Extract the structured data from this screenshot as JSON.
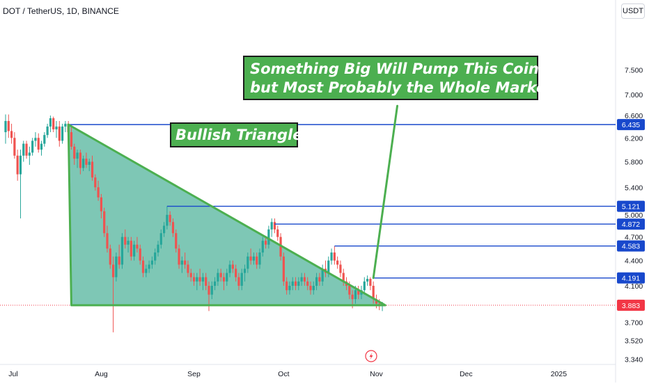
{
  "header": {
    "symbol_title": "DOT / TetherUS, 1D, BINANCE",
    "currency_button": "USDT"
  },
  "annotations": {
    "main_text_line1": "Something Big Will Pump This Coin",
    "main_text_line2": "but Most Probably the Whole Market",
    "triangle_label": "Bullish Triangle"
  },
  "colors": {
    "up": "#26a69a",
    "down": "#ef5350",
    "level_line": "#1848cc",
    "triangle_fill": "#2fa588",
    "triangle_edge": "#4caf50",
    "current_price": "#f23645"
  },
  "chart_data": {
    "type": "candlestick",
    "title": "DOT / TetherUS, 1D, BINANCE",
    "x_ticks": [
      "Jul",
      "Aug",
      "Sep",
      "Oct",
      "Nov",
      "Dec",
      "2025"
    ],
    "y_ticks": [
      7.5,
      7.0,
      6.6,
      6.2,
      5.8,
      5.4,
      5.0,
      4.7,
      4.4,
      4.1,
      3.7,
      3.52,
      3.34
    ],
    "y_tick_labels": [
      "7.500",
      "7.000",
      "6.600",
      "6.200",
      "5.800",
      "5.400",
      "5.000",
      "4.700",
      "4.400",
      "4.100",
      "3.700",
      "3.520",
      "3.340"
    ],
    "y_scale": "log",
    "ylim": [
      3.31,
      8.6
    ],
    "x_range": [
      "2024-06-30",
      "2025-01-20"
    ],
    "current_price": {
      "value": 3.883,
      "label": "3.883"
    },
    "levels": [
      {
        "value": 6.435,
        "label": "6.435",
        "start": "2024-07-21"
      },
      {
        "value": 5.121,
        "label": "5.121",
        "start": "2024-08-23"
      },
      {
        "value": 4.872,
        "label": "4.872",
        "start": "2024-09-28"
      },
      {
        "value": 4.583,
        "label": "4.583",
        "start": "2024-10-18"
      },
      {
        "value": 4.191,
        "label": "4.191",
        "start": "2024-10-31"
      }
    ],
    "triangle": {
      "points": [
        {
          "date": "2024-07-21",
          "price": 6.435
        },
        {
          "date": "2024-07-22",
          "price": 3.883
        },
        {
          "date": "2024-11-04",
          "price": 3.883
        }
      ]
    },
    "projection": {
      "from": {
        "date": "2024-10-31",
        "price": 4.191
      },
      "to": {
        "date": "2024-11-08",
        "price": 6.78
      }
    },
    "candles": [
      {
        "date": "2024-06-30",
        "open": 6.3,
        "high": 6.62,
        "low": 6.1,
        "close": 6.5
      },
      {
        "date": "2024-07-01",
        "open": 6.5,
        "high": 6.62,
        "low": 6.2,
        "close": 6.32
      },
      {
        "date": "2024-07-02",
        "open": 6.32,
        "high": 6.45,
        "low": 6.1,
        "close": 6.2
      },
      {
        "date": "2024-07-03",
        "open": 6.2,
        "high": 6.3,
        "low": 5.85,
        "close": 5.9
      },
      {
        "date": "2024-07-04",
        "open": 5.9,
        "high": 6.0,
        "low": 5.5,
        "close": 5.6
      },
      {
        "date": "2024-07-05",
        "open": 5.6,
        "high": 6.0,
        "low": 4.95,
        "close": 5.9
      },
      {
        "date": "2024-07-06",
        "open": 5.9,
        "high": 6.15,
        "low": 5.8,
        "close": 6.1
      },
      {
        "date": "2024-07-07",
        "open": 6.1,
        "high": 6.15,
        "low": 5.85,
        "close": 5.9
      },
      {
        "date": "2024-07-08",
        "open": 5.9,
        "high": 6.05,
        "low": 5.75,
        "close": 5.95
      },
      {
        "date": "2024-07-09",
        "open": 5.95,
        "high": 6.2,
        "low": 5.9,
        "close": 6.15
      },
      {
        "date": "2024-07-10",
        "open": 6.15,
        "high": 6.3,
        "low": 6.05,
        "close": 6.2
      },
      {
        "date": "2024-07-11",
        "open": 6.2,
        "high": 6.28,
        "low": 5.95,
        "close": 6.0
      },
      {
        "date": "2024-07-12",
        "open": 6.0,
        "high": 6.15,
        "low": 5.9,
        "close": 6.1
      },
      {
        "date": "2024-07-13",
        "open": 6.1,
        "high": 6.3,
        "low": 6.05,
        "close": 6.25
      },
      {
        "date": "2024-07-14",
        "open": 6.25,
        "high": 6.45,
        "low": 6.2,
        "close": 6.4
      },
      {
        "date": "2024-07-15",
        "open": 6.4,
        "high": 6.6,
        "low": 6.3,
        "close": 6.55
      },
      {
        "date": "2024-07-16",
        "open": 6.55,
        "high": 6.58,
        "low": 6.3,
        "close": 6.35
      },
      {
        "date": "2024-07-17",
        "open": 6.35,
        "high": 6.5,
        "low": 6.2,
        "close": 6.4
      },
      {
        "date": "2024-07-18",
        "open": 6.4,
        "high": 6.5,
        "low": 6.05,
        "close": 6.15
      },
      {
        "date": "2024-07-19",
        "open": 6.15,
        "high": 6.45,
        "low": 6.1,
        "close": 6.4
      },
      {
        "date": "2024-07-20",
        "open": 6.4,
        "high": 6.5,
        "low": 6.3,
        "close": 6.45
      },
      {
        "date": "2024-07-21",
        "open": 6.45,
        "high": 6.5,
        "low": 6.25,
        "close": 6.3
      },
      {
        "date": "2024-07-22",
        "open": 6.3,
        "high": 6.4,
        "low": 6.0,
        "close": 6.05
      },
      {
        "date": "2024-07-23",
        "open": 6.05,
        "high": 6.1,
        "low": 5.75,
        "close": 5.85
      },
      {
        "date": "2024-07-24",
        "open": 5.85,
        "high": 6.0,
        "low": 5.7,
        "close": 5.95
      },
      {
        "date": "2024-07-25",
        "open": 5.95,
        "high": 6.0,
        "low": 5.6,
        "close": 5.7
      },
      {
        "date": "2024-07-26",
        "open": 5.7,
        "high": 5.9,
        "low": 5.65,
        "close": 5.85
      },
      {
        "date": "2024-07-27",
        "open": 5.85,
        "high": 5.95,
        "low": 5.7,
        "close": 5.75
      },
      {
        "date": "2024-07-28",
        "open": 5.75,
        "high": 5.85,
        "low": 5.65,
        "close": 5.8
      },
      {
        "date": "2024-07-29",
        "open": 5.8,
        "high": 5.9,
        "low": 5.5,
        "close": 5.55
      },
      {
        "date": "2024-07-30",
        "open": 5.55,
        "high": 5.6,
        "low": 5.35,
        "close": 5.4
      },
      {
        "date": "2024-07-31",
        "open": 5.4,
        "high": 5.5,
        "low": 5.2,
        "close": 5.25
      },
      {
        "date": "2024-08-01",
        "open": 5.25,
        "high": 5.3,
        "low": 4.95,
        "close": 5.05
      },
      {
        "date": "2024-08-02",
        "open": 5.05,
        "high": 5.1,
        "low": 4.7,
        "close": 4.75
      },
      {
        "date": "2024-08-03",
        "open": 4.75,
        "high": 4.85,
        "low": 4.5,
        "close": 4.55
      },
      {
        "date": "2024-08-04",
        "open": 4.55,
        "high": 4.6,
        "low": 4.3,
        "close": 4.35
      },
      {
        "date": "2024-08-05",
        "open": 4.35,
        "high": 4.45,
        "low": 3.6,
        "close": 4.2
      },
      {
        "date": "2024-08-06",
        "open": 4.2,
        "high": 4.5,
        "low": 4.15,
        "close": 4.45
      },
      {
        "date": "2024-08-07",
        "open": 4.45,
        "high": 4.6,
        "low": 4.3,
        "close": 4.35
      },
      {
        "date": "2024-08-08",
        "open": 4.35,
        "high": 4.75,
        "low": 4.3,
        "close": 4.7
      },
      {
        "date": "2024-08-09",
        "open": 4.7,
        "high": 4.8,
        "low": 4.55,
        "close": 4.6
      },
      {
        "date": "2024-08-10",
        "open": 4.6,
        "high": 4.7,
        "low": 4.5,
        "close": 4.65
      },
      {
        "date": "2024-08-11",
        "open": 4.65,
        "high": 4.7,
        "low": 4.4,
        "close": 4.45
      },
      {
        "date": "2024-08-12",
        "open": 4.45,
        "high": 4.65,
        "low": 4.4,
        "close": 4.6
      },
      {
        "date": "2024-08-13",
        "open": 4.6,
        "high": 4.7,
        "low": 4.5,
        "close": 4.55
      },
      {
        "date": "2024-08-14",
        "open": 4.55,
        "high": 4.6,
        "low": 4.35,
        "close": 4.4
      },
      {
        "date": "2024-08-15",
        "open": 4.4,
        "high": 4.45,
        "low": 4.2,
        "close": 4.25
      },
      {
        "date": "2024-08-16",
        "open": 4.25,
        "high": 4.35,
        "low": 4.2,
        "close": 4.3
      },
      {
        "date": "2024-08-17",
        "open": 4.3,
        "high": 4.4,
        "low": 4.25,
        "close": 4.35
      },
      {
        "date": "2024-08-18",
        "open": 4.35,
        "high": 4.45,
        "low": 4.3,
        "close": 4.4
      },
      {
        "date": "2024-08-19",
        "open": 4.4,
        "high": 4.55,
        "low": 4.35,
        "close": 4.5
      },
      {
        "date": "2024-08-20",
        "open": 4.5,
        "high": 4.65,
        "low": 4.45,
        "close": 4.6
      },
      {
        "date": "2024-08-21",
        "open": 4.6,
        "high": 4.8,
        "low": 4.55,
        "close": 4.75
      },
      {
        "date": "2024-08-22",
        "open": 4.75,
        "high": 4.9,
        "low": 4.7,
        "close": 4.85
      },
      {
        "date": "2024-08-23",
        "open": 4.85,
        "high": 5.12,
        "low": 4.8,
        "close": 5.0
      },
      {
        "date": "2024-08-24",
        "open": 5.0,
        "high": 5.05,
        "low": 4.85,
        "close": 4.9
      },
      {
        "date": "2024-08-25",
        "open": 4.9,
        "high": 4.95,
        "low": 4.7,
        "close": 4.75
      },
      {
        "date": "2024-08-26",
        "open": 4.75,
        "high": 4.8,
        "low": 4.5,
        "close": 4.55
      },
      {
        "date": "2024-08-27",
        "open": 4.55,
        "high": 4.6,
        "low": 4.3,
        "close": 4.35
      },
      {
        "date": "2024-08-28",
        "open": 4.35,
        "high": 4.45,
        "low": 4.25,
        "close": 4.4
      },
      {
        "date": "2024-08-29",
        "open": 4.4,
        "high": 4.5,
        "low": 4.3,
        "close": 4.35
      },
      {
        "date": "2024-08-30",
        "open": 4.35,
        "high": 4.4,
        "low": 4.2,
        "close": 4.25
      },
      {
        "date": "2024-08-31",
        "open": 4.25,
        "high": 4.3,
        "low": 4.15,
        "close": 4.2
      },
      {
        "date": "2024-09-01",
        "open": 4.2,
        "high": 4.25,
        "low": 4.1,
        "close": 4.15
      },
      {
        "date": "2024-09-02",
        "open": 4.15,
        "high": 4.25,
        "low": 4.05,
        "close": 4.2
      },
      {
        "date": "2024-09-03",
        "open": 4.2,
        "high": 4.3,
        "low": 4.1,
        "close": 4.15
      },
      {
        "date": "2024-09-04",
        "open": 4.15,
        "high": 4.25,
        "low": 4.05,
        "close": 4.2
      },
      {
        "date": "2024-09-05",
        "open": 4.2,
        "high": 4.25,
        "low": 4.05,
        "close": 4.1
      },
      {
        "date": "2024-09-06",
        "open": 4.1,
        "high": 4.15,
        "low": 3.82,
        "close": 4.0
      },
      {
        "date": "2024-09-07",
        "open": 4.0,
        "high": 4.15,
        "low": 3.95,
        "close": 4.1
      },
      {
        "date": "2024-09-08",
        "open": 4.1,
        "high": 4.2,
        "low": 4.05,
        "close": 4.15
      },
      {
        "date": "2024-09-09",
        "open": 4.15,
        "high": 4.3,
        "low": 4.1,
        "close": 4.25
      },
      {
        "date": "2024-09-10",
        "open": 4.25,
        "high": 4.3,
        "low": 4.15,
        "close": 4.2
      },
      {
        "date": "2024-09-11",
        "open": 4.2,
        "high": 4.25,
        "low": 4.05,
        "close": 4.15
      },
      {
        "date": "2024-09-12",
        "open": 4.15,
        "high": 4.3,
        "low": 4.1,
        "close": 4.25
      },
      {
        "date": "2024-09-13",
        "open": 4.25,
        "high": 4.4,
        "low": 4.2,
        "close": 4.35
      },
      {
        "date": "2024-09-14",
        "open": 4.35,
        "high": 4.4,
        "low": 4.25,
        "close": 4.3
      },
      {
        "date": "2024-09-15",
        "open": 4.3,
        "high": 4.35,
        "low": 4.15,
        "close": 4.2
      },
      {
        "date": "2024-09-16",
        "open": 4.2,
        "high": 4.25,
        "low": 4.05,
        "close": 4.1
      },
      {
        "date": "2024-09-17",
        "open": 4.1,
        "high": 4.3,
        "low": 4.05,
        "close": 4.25
      },
      {
        "date": "2024-09-18",
        "open": 4.25,
        "high": 4.35,
        "low": 4.15,
        "close": 4.3
      },
      {
        "date": "2024-09-19",
        "open": 4.3,
        "high": 4.5,
        "low": 4.25,
        "close": 4.45
      },
      {
        "date": "2024-09-20",
        "open": 4.45,
        "high": 4.55,
        "low": 4.35,
        "close": 4.4
      },
      {
        "date": "2024-09-21",
        "open": 4.4,
        "high": 4.5,
        "low": 4.35,
        "close": 4.45
      },
      {
        "date": "2024-09-22",
        "open": 4.45,
        "high": 4.5,
        "low": 4.3,
        "close": 4.35
      },
      {
        "date": "2024-09-23",
        "open": 4.35,
        "high": 4.55,
        "low": 4.3,
        "close": 4.5
      },
      {
        "date": "2024-09-24",
        "open": 4.5,
        "high": 4.7,
        "low": 4.45,
        "close": 4.65
      },
      {
        "date": "2024-09-25",
        "open": 4.65,
        "high": 4.7,
        "low": 4.55,
        "close": 4.6
      },
      {
        "date": "2024-09-26",
        "open": 4.6,
        "high": 4.85,
        "low": 4.55,
        "close": 4.8
      },
      {
        "date": "2024-09-27",
        "open": 4.8,
        "high": 4.95,
        "low": 4.7,
        "close": 4.9
      },
      {
        "date": "2024-09-28",
        "open": 4.9,
        "high": 4.95,
        "low": 4.75,
        "close": 4.8
      },
      {
        "date": "2024-09-29",
        "open": 4.8,
        "high": 4.85,
        "low": 4.65,
        "close": 4.7
      },
      {
        "date": "2024-09-30",
        "open": 4.7,
        "high": 4.75,
        "low": 4.4,
        "close": 4.45
      },
      {
        "date": "2024-10-01",
        "open": 4.45,
        "high": 4.5,
        "low": 4.1,
        "close": 4.15
      },
      {
        "date": "2024-10-02",
        "open": 4.15,
        "high": 4.2,
        "low": 4.0,
        "close": 4.05
      },
      {
        "date": "2024-10-03",
        "open": 4.05,
        "high": 4.15,
        "low": 4.0,
        "close": 4.1
      },
      {
        "date": "2024-10-04",
        "open": 4.1,
        "high": 4.2,
        "low": 4.05,
        "close": 4.15
      },
      {
        "date": "2024-10-05",
        "open": 4.15,
        "high": 4.2,
        "low": 4.05,
        "close": 4.1
      },
      {
        "date": "2024-10-06",
        "open": 4.1,
        "high": 4.2,
        "low": 4.05,
        "close": 4.15
      },
      {
        "date": "2024-10-07",
        "open": 4.15,
        "high": 4.25,
        "low": 4.1,
        "close": 4.2
      },
      {
        "date": "2024-10-08",
        "open": 4.2,
        "high": 4.25,
        "low": 4.1,
        "close": 4.15
      },
      {
        "date": "2024-10-09",
        "open": 4.15,
        "high": 4.2,
        "low": 4.05,
        "close": 4.1
      },
      {
        "date": "2024-10-10",
        "open": 4.1,
        "high": 4.15,
        "low": 4.0,
        "close": 4.05
      },
      {
        "date": "2024-10-11",
        "open": 4.05,
        "high": 4.15,
        "low": 4.0,
        "close": 4.1
      },
      {
        "date": "2024-10-12",
        "open": 4.1,
        "high": 4.25,
        "low": 4.05,
        "close": 4.2
      },
      {
        "date": "2024-10-13",
        "open": 4.2,
        "high": 4.25,
        "low": 4.1,
        "close": 4.15
      },
      {
        "date": "2024-10-14",
        "open": 4.15,
        "high": 4.35,
        "low": 4.1,
        "close": 4.3
      },
      {
        "date": "2024-10-15",
        "open": 4.3,
        "high": 4.4,
        "low": 4.2,
        "close": 4.25
      },
      {
        "date": "2024-10-16",
        "open": 4.25,
        "high": 4.45,
        "low": 4.2,
        "close": 4.4
      },
      {
        "date": "2024-10-17",
        "open": 4.4,
        "high": 4.55,
        "low": 4.35,
        "close": 4.5
      },
      {
        "date": "2024-10-18",
        "open": 4.5,
        "high": 4.58,
        "low": 4.35,
        "close": 4.4
      },
      {
        "date": "2024-10-19",
        "open": 4.4,
        "high": 4.45,
        "low": 4.3,
        "close": 4.35
      },
      {
        "date": "2024-10-20",
        "open": 4.35,
        "high": 4.4,
        "low": 4.2,
        "close": 4.25
      },
      {
        "date": "2024-10-21",
        "open": 4.25,
        "high": 4.3,
        "low": 4.1,
        "close": 4.15
      },
      {
        "date": "2024-10-22",
        "open": 4.15,
        "high": 4.2,
        "low": 4.05,
        "close": 4.1
      },
      {
        "date": "2024-10-23",
        "open": 4.1,
        "high": 4.15,
        "low": 3.95,
        "close": 4.0
      },
      {
        "date": "2024-10-24",
        "open": 4.0,
        "high": 4.05,
        "low": 3.85,
        "close": 3.95
      },
      {
        "date": "2024-10-25",
        "open": 3.95,
        "high": 4.1,
        "low": 3.9,
        "close": 4.05
      },
      {
        "date": "2024-10-26",
        "open": 4.05,
        "high": 4.1,
        "low": 3.95,
        "close": 4.0
      },
      {
        "date": "2024-10-27",
        "open": 4.0,
        "high": 4.1,
        "low": 3.95,
        "close": 4.05
      },
      {
        "date": "2024-10-28",
        "open": 4.05,
        "high": 4.2,
        "low": 4.0,
        "close": 4.15
      },
      {
        "date": "2024-10-29",
        "open": 4.15,
        "high": 4.22,
        "low": 4.1,
        "close": 4.18
      },
      {
        "date": "2024-10-30",
        "open": 4.18,
        "high": 4.2,
        "low": 4.05,
        "close": 4.1
      },
      {
        "date": "2024-10-31",
        "open": 4.1,
        "high": 4.15,
        "low": 3.9,
        "close": 3.95
      },
      {
        "date": "2024-11-01",
        "open": 3.95,
        "high": 4.0,
        "low": 3.85,
        "close": 3.9
      },
      {
        "date": "2024-11-02",
        "open": 3.9,
        "high": 3.95,
        "low": 3.83,
        "close": 3.88
      },
      {
        "date": "2024-11-03",
        "open": 3.88,
        "high": 3.92,
        "low": 3.82,
        "close": 3.883
      }
    ]
  }
}
